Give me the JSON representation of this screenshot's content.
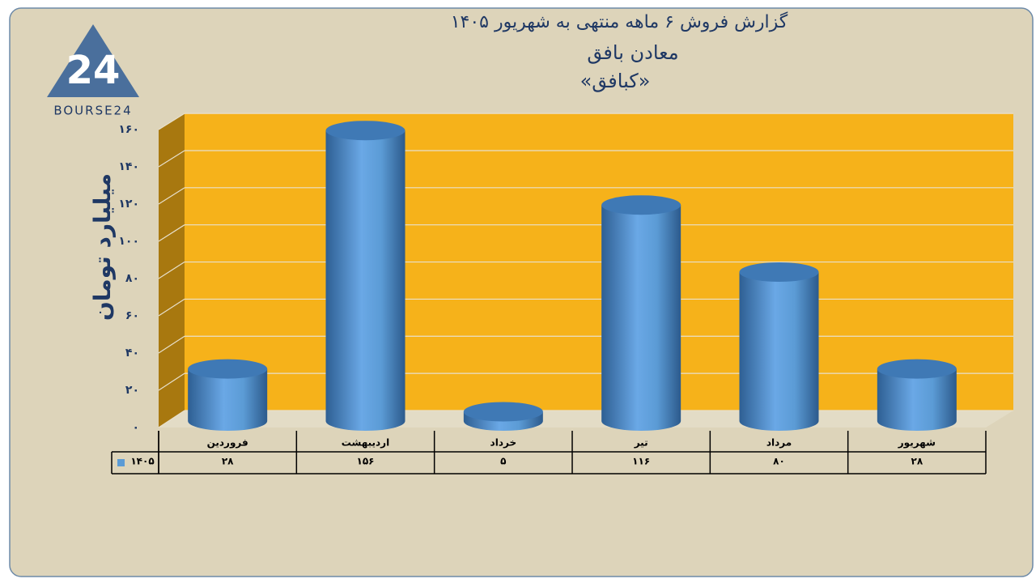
{
  "logo": {
    "mark": "24",
    "name": "BOURSE24"
  },
  "chart_data": {
    "type": "bar",
    "title": "گزارش  فروش ۶ ماهه منتهی به شهریور ۱۴۰۵",
    "subtitle": [
      "معادن بافق",
      "«کبافق»"
    ],
    "y_label": "میلیارد تومان",
    "categories": [
      "فروردین",
      "اردیبهشت",
      "خرداد",
      "تیر",
      "مرداد",
      "شهریور"
    ],
    "series": [
      {
        "name": "۱۴۰۵",
        "color": "#5b9bd5",
        "values": [
          28,
          156,
          5,
          116,
          80,
          28
        ],
        "value_labels": [
          "۲۸",
          "۱۵۶",
          "۵",
          "۱۱۶",
          "۸۰",
          "۲۸"
        ]
      }
    ],
    "ylim": [
      0,
      160
    ],
    "yticks": [
      {
        "value": 0,
        "label": "۰"
      },
      {
        "value": 20,
        "label": "۲۰"
      },
      {
        "value": 40,
        "label": "۴۰"
      },
      {
        "value": 60,
        "label": "۶۰"
      },
      {
        "value": 80,
        "label": "۸۰"
      },
      {
        "value": 100,
        "label": "۱۰۰"
      },
      {
        "value": 120,
        "label": "۱۲۰"
      },
      {
        "value": 140,
        "label": "۱۴۰"
      },
      {
        "value": 160,
        "label": "۱۶۰"
      }
    ],
    "grid": true
  }
}
